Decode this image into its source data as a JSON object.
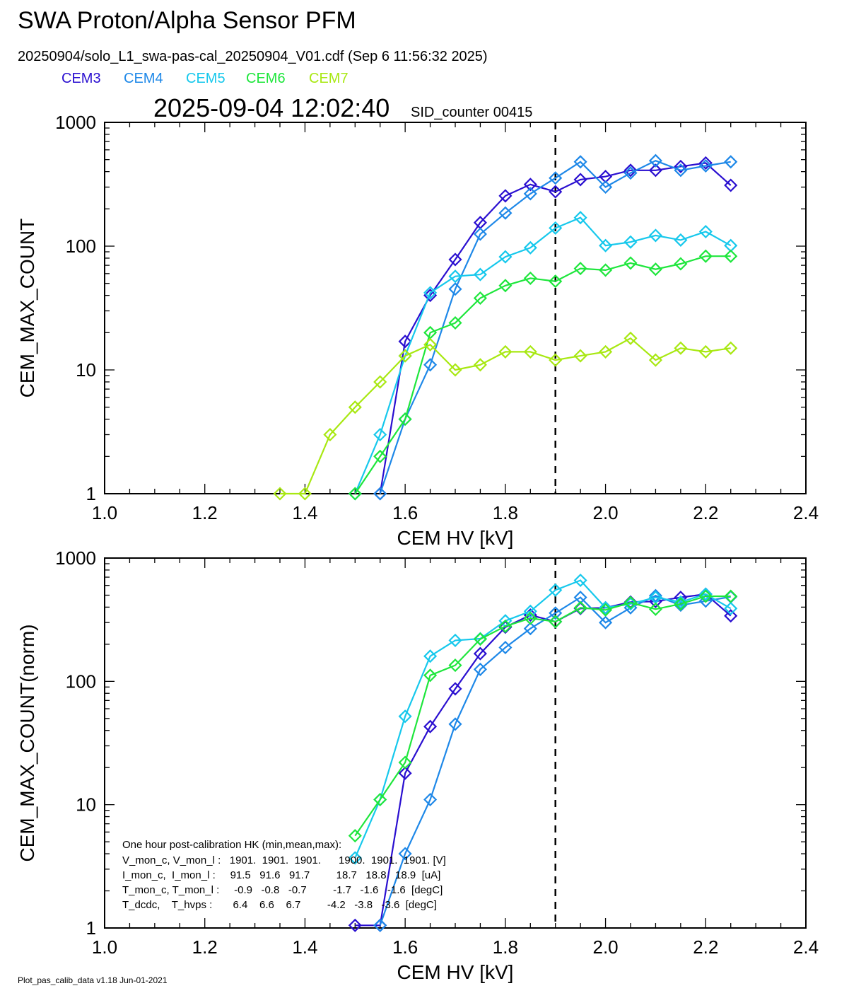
{
  "header": {
    "title": "SWA Proton/Alpha Sensor PFM",
    "file_line": "20250904/solo_L1_swa-pas-cal_20250904_V01.cdf  (Sep  6 11:56:32 2025)",
    "timestamp": "2025-09-04 12:02:40",
    "sid_counter": "SID_counter 00415"
  },
  "legend": [
    {
      "label": "CEM3",
      "color": "#2a0fd0"
    },
    {
      "label": "CEM4",
      "color": "#1e88e8"
    },
    {
      "label": "CEM5",
      "color": "#16c8ec"
    },
    {
      "label": "CEM6",
      "color": "#1ee63c"
    },
    {
      "label": "CEM7",
      "color": "#a8e812"
    }
  ],
  "footer": "Plot_pas_calib_data v1.18 Jun-01-2021",
  "hk_box": {
    "lines": [
      "One hour post-calibration HK (min,mean,max):",
      "V_mon_c, V_mon_l :   1901.  1901.  1901.      1900.  1901.  1901. [V]",
      "I_mon_c,  I_mon_l :     91.5   91.6   91.7         18.7   18.8   18.9  [uA]",
      "T_mon_c, T_mon_l :     -0.9   -0.8   -0.7         -1.7   -1.6   -1.6  [degC]",
      "T_dcdc,    T_hvps :       6.4    6.6    6.7         -4.2   -3.8   -3.6  [degC]"
    ]
  },
  "chart_data": [
    {
      "type": "line",
      "title": "",
      "xlabel": "CEM HV [kV]",
      "ylabel": "CEM_MAX_COUNT",
      "xlim": [
        1.0,
        2.4
      ],
      "ylim": [
        1,
        1000
      ],
      "yscale": "log",
      "xticks": [
        "1.0",
        "1.2",
        "1.4",
        "1.6",
        "1.8",
        "2.0",
        "2.2",
        "2.4"
      ],
      "yticks": [
        "1",
        "10",
        "100",
        "1000"
      ],
      "vline_x": 1.9,
      "marker": "diamond",
      "series": [
        {
          "name": "CEM3",
          "color": "#2a0fd0",
          "x": [
            1.55,
            1.6,
            1.65,
            1.7,
            1.75,
            1.8,
            1.85,
            1.9,
            1.95,
            2.0,
            2.05,
            2.1,
            2.15,
            2.2,
            2.25
          ],
          "y": [
            1,
            17,
            40,
            78,
            155,
            255,
            315,
            275,
            345,
            365,
            410,
            410,
            440,
            470,
            310
          ]
        },
        {
          "name": "CEM4",
          "color": "#1e88e8",
          "x": [
            1.55,
            1.6,
            1.65,
            1.7,
            1.75,
            1.8,
            1.85,
            1.9,
            1.95,
            2.0,
            2.05,
            2.1,
            2.15,
            2.2,
            2.25
          ],
          "y": [
            1,
            4,
            11,
            45,
            125,
            185,
            265,
            355,
            480,
            300,
            390,
            490,
            410,
            445,
            480
          ]
        },
        {
          "name": "CEM5",
          "color": "#16c8ec",
          "x": [
            1.5,
            1.55,
            1.6,
            1.65,
            1.7,
            1.75,
            1.8,
            1.85,
            1.9,
            1.95,
            2.0,
            2.05,
            2.1,
            2.15,
            2.2,
            2.25
          ],
          "y": [
            1,
            3,
            13,
            42,
            57,
            59,
            82,
            97,
            140,
            170,
            101,
            108,
            122,
            112,
            131,
            101
          ]
        },
        {
          "name": "CEM6",
          "color": "#1ee63c",
          "x": [
            1.5,
            1.55,
            1.6,
            1.65,
            1.7,
            1.75,
            1.8,
            1.85,
            1.9,
            1.95,
            2.0,
            2.05,
            2.1,
            2.15,
            2.2,
            2.25
          ],
          "y": [
            1,
            2,
            4,
            20,
            24,
            38,
            48,
            55,
            52,
            66,
            64,
            73,
            65,
            72,
            83,
            83
          ]
        },
        {
          "name": "CEM7",
          "color": "#a8e812",
          "x": [
            1.35,
            1.4,
            1.45,
            1.5,
            1.55,
            1.6,
            1.65,
            1.7,
            1.75,
            1.8,
            1.85,
            1.9,
            1.95,
            2.0,
            2.05,
            2.1,
            2.15,
            2.2,
            2.25
          ],
          "y": [
            1,
            1,
            3,
            5,
            8,
            13,
            16,
            10,
            11,
            14,
            14,
            12,
            13,
            14,
            18,
            12,
            15,
            14,
            15
          ]
        }
      ]
    },
    {
      "type": "line",
      "title": "",
      "xlabel": "CEM HV [kV]",
      "ylabel": "CEM_MAX_COUNT(norm)",
      "xlim": [
        1.0,
        2.4
      ],
      "ylim": [
        1,
        1000
      ],
      "yscale": "log",
      "xticks": [
        "1.0",
        "1.2",
        "1.4",
        "1.6",
        "1.8",
        "2.0",
        "2.2",
        "2.4"
      ],
      "yticks": [
        "1",
        "10",
        "100",
        "1000"
      ],
      "vline_x": 1.9,
      "marker": "diamond",
      "series": [
        {
          "name": "CEM3",
          "color": "#2a0fd0",
          "x": [
            1.5,
            1.55,
            1.6,
            1.65,
            1.7,
            1.75,
            1.8,
            1.85,
            1.9,
            1.95,
            2.0,
            2.05,
            2.1,
            2.15,
            2.2,
            2.25
          ],
          "y": [
            1.05,
            1.05,
            18,
            43,
            87,
            168,
            275,
            345,
            305,
            390,
            395,
            440,
            445,
            480,
            510,
            340
          ]
        },
        {
          "name": "CEM4",
          "color": "#1e88e8",
          "x": [
            1.55,
            1.6,
            1.65,
            1.7,
            1.75,
            1.8,
            1.85,
            1.9,
            1.95,
            2.0,
            2.05,
            2.1,
            2.15,
            2.2,
            2.25
          ],
          "y": [
            1.05,
            4,
            11,
            45,
            125,
            188,
            268,
            358,
            480,
            300,
            395,
            495,
            415,
            448,
            485
          ]
        },
        {
          "name": "CEM5",
          "color": "#16c8ec",
          "x": [
            1.5,
            1.55,
            1.6,
            1.65,
            1.7,
            1.75,
            1.8,
            1.85,
            1.9,
            1.95,
            2.0,
            2.05,
            2.1,
            2.15,
            2.2,
            2.25
          ],
          "y": [
            3.7,
            11,
            52,
            160,
            215,
            222,
            310,
            370,
            550,
            660,
            395,
            425,
            480,
            440,
            510,
            390
          ]
        },
        {
          "name": "CEM6",
          "color": "#1ee63c",
          "x": [
            1.5,
            1.55,
            1.6,
            1.65,
            1.7,
            1.75,
            1.8,
            1.85,
            1.9,
            1.95,
            2.0,
            2.05,
            2.1,
            2.15,
            2.2,
            2.25
          ],
          "y": [
            5.6,
            11,
            22,
            112,
            135,
            220,
            280,
            325,
            305,
            395,
            380,
            435,
            385,
            425,
            490,
            490
          ]
        }
      ]
    }
  ]
}
